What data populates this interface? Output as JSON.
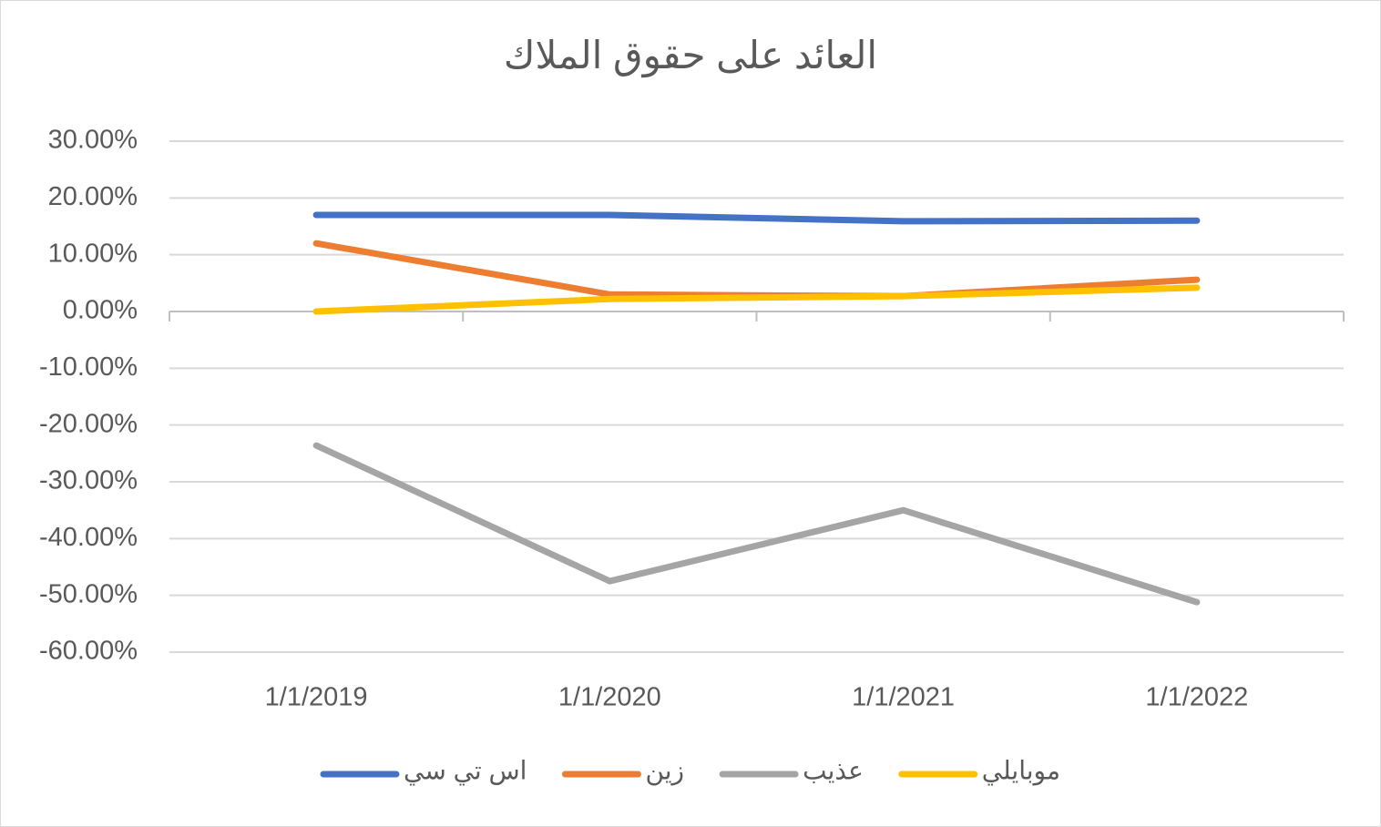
{
  "chart_data": {
    "type": "line",
    "title": "العائد على حقوق الملاك",
    "categories": [
      "1/1/2019",
      "1/1/2020",
      "1/1/2021",
      "1/1/2022"
    ],
    "series": [
      {
        "name": "اس تي سي",
        "color": "#4472c4",
        "values": [
          17,
          17,
          15.9,
          16
        ]
      },
      {
        "name": "زين",
        "color": "#ed7d31",
        "values": [
          12,
          3,
          2.7,
          5.6
        ]
      },
      {
        "name": "عذيب",
        "color": "#a5a5a5",
        "values": [
          -23.6,
          -47.5,
          -35,
          -51.2
        ]
      },
      {
        "name": "موبايلي",
        "color": "#ffc000",
        "values": [
          0,
          2.2,
          2.7,
          4.2
        ]
      }
    ],
    "ylim": [
      -60,
      30
    ],
    "yticks": [
      {
        "value": -60,
        "label": "-60.00%"
      },
      {
        "value": -50,
        "label": "-50.00%"
      },
      {
        "value": -40,
        "label": "-40.00%"
      },
      {
        "value": -30,
        "label": "-30.00%"
      },
      {
        "value": -20,
        "label": "-20.00%"
      },
      {
        "value": -10,
        "label": "-10.00%"
      },
      {
        "value": 0,
        "label": "0.00%"
      },
      {
        "value": 10,
        "label": "10.00%"
      },
      {
        "value": 20,
        "label": "20.00%"
      },
      {
        "value": 30,
        "label": "30.00%"
      }
    ],
    "grid": true,
    "legend": "bottom"
  }
}
